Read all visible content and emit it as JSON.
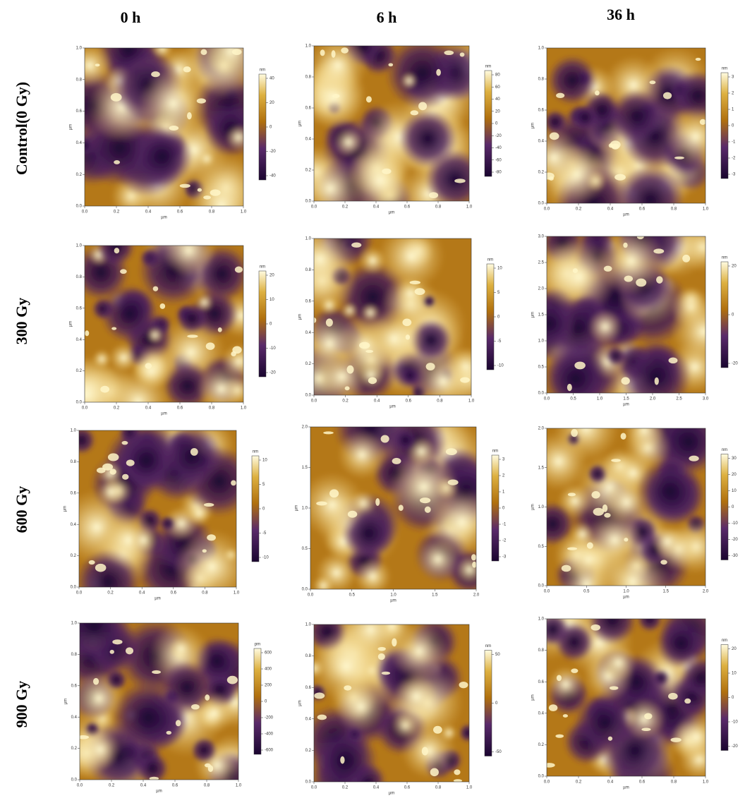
{
  "columns": [
    "0 h",
    "6 h",
    "36 h"
  ],
  "rows": [
    "Control(0 Gy)",
    "300 Gy",
    "600 Gy",
    "900 Gy"
  ],
  "panels": [
    {
      "xticks": [
        "0.0",
        "0.2",
        "0.4",
        "0.6",
        "0.8",
        "1.0"
      ],
      "yticks": [
        "0.0",
        "0.2",
        "0.4",
        "0.6",
        "0.8",
        "1.0"
      ],
      "xlabel": "µm",
      "ylabel": "µm",
      "unit": "nm",
      "cticks": [
        "40",
        "20",
        "0",
        "-20",
        "-40"
      ]
    },
    {
      "xticks": [
        "0.0",
        "0.2",
        "0.4",
        "0.6",
        "0.8",
        "1.0"
      ],
      "yticks": [
        "0.0",
        "0.2",
        "0.4",
        "0.6",
        "0.8",
        "1.0"
      ],
      "xlabel": "µm",
      "ylabel": "µm",
      "unit": "nm",
      "cticks": [
        "80",
        "60",
        "40",
        "20",
        "0",
        "-20",
        "-40",
        "-60",
        "-80"
      ]
    },
    {
      "xticks": [
        "0.0",
        "0.2",
        "0.4",
        "0.6",
        "0.8",
        "1.0"
      ],
      "yticks": [
        "0.0",
        "0.2",
        "0.4",
        "0.6",
        "0.8",
        "1.0"
      ],
      "xlabel": "µm",
      "ylabel": "µm",
      "unit": "nm",
      "cticks": [
        "3",
        "2",
        "1",
        "0",
        "-1",
        "-2",
        "-3"
      ]
    },
    {
      "xticks": [
        "0.0",
        "0.2",
        "0.4",
        "0.6",
        "0.8",
        "1.0"
      ],
      "yticks": [
        "0.0",
        "0.2",
        "0.4",
        "0.6",
        "0.8",
        "1.0"
      ],
      "xlabel": "µm",
      "ylabel": "µm",
      "unit": "nm",
      "cticks": [
        "20",
        "10",
        "0",
        "-10",
        "-20"
      ]
    },
    {
      "xticks": [
        "0.0",
        "0.2",
        "0.4",
        "0.6",
        "0.8",
        "1.0"
      ],
      "yticks": [
        "0.0",
        "0.2",
        "0.4",
        "0.6",
        "0.8",
        "1.0"
      ],
      "xlabel": "µm",
      "ylabel": "µm",
      "unit": "nm",
      "cticks": [
        "10",
        "5",
        "0",
        "-5",
        "-10"
      ]
    },
    {
      "xticks": [
        "0.0",
        "0.5",
        "1.0",
        "1.5",
        "2.0",
        "2.5",
        "3.0"
      ],
      "yticks": [
        "0.0",
        "0.5",
        "1.0",
        "1.5",
        "2.0",
        "2.5",
        "3.0"
      ],
      "xlabel": "µm",
      "ylabel": "µm",
      "unit": "nm",
      "cticks": [
        "20",
        "0",
        "-20"
      ]
    },
    {
      "xticks": [
        "0.0",
        "0.2",
        "0.4",
        "0.6",
        "0.8",
        "1.0"
      ],
      "yticks": [
        "0.0",
        "0.2",
        "0.4",
        "0.6",
        "0.8",
        "1.0"
      ],
      "xlabel": "µm",
      "ylabel": "µm",
      "unit": "nm",
      "cticks": [
        "10",
        "5",
        "0",
        "-5",
        "-10"
      ]
    },
    {
      "xticks": [
        "0.0",
        "0.5",
        "1.0",
        "1.5",
        "2.0"
      ],
      "yticks": [
        "0.0",
        "0.5",
        "1.0",
        "1.5",
        "2.0"
      ],
      "xlabel": "µm",
      "ylabel": "µm",
      "unit": "nm",
      "cticks": [
        "3",
        "2",
        "1",
        "0",
        "-1",
        "-2",
        "-3"
      ]
    },
    {
      "xticks": [
        "0.0",
        "0.5",
        "1.0",
        "1.5",
        "2.0"
      ],
      "yticks": [
        "0.0",
        "0.5",
        "1.0",
        "1.5",
        "2.0"
      ],
      "xlabel": "µm",
      "ylabel": "µm",
      "unit": "nm",
      "cticks": [
        "30",
        "20",
        "10",
        "0",
        "-10",
        "-20",
        "-30"
      ]
    },
    {
      "xticks": [
        "0.0",
        "0.2",
        "0.4",
        "0.6",
        "0.8",
        "1.0"
      ],
      "yticks": [
        "0.0",
        "0.2",
        "0.4",
        "0.6",
        "0.8",
        "1.0"
      ],
      "xlabel": "µm",
      "ylabel": "µm",
      "unit": "pm",
      "cticks": [
        "600",
        "400",
        "200",
        "0",
        "-200",
        "-400",
        "-600"
      ]
    },
    {
      "xticks": [
        "0.0",
        "0.2",
        "0.4",
        "0.6",
        "0.8",
        "1.0"
      ],
      "yticks": [
        "0.0",
        "0.2",
        "0.4",
        "0.6",
        "0.8",
        "1.0"
      ],
      "xlabel": "µm",
      "ylabel": "µm",
      "unit": "nm",
      "cticks": [
        "50",
        "0",
        "-50"
      ]
    },
    {
      "xticks": [
        "0.0",
        "0.2",
        "0.4",
        "0.6",
        "0.8",
        "1.0"
      ],
      "yticks": [
        "0.0",
        "0.2",
        "0.4",
        "0.6",
        "0.8",
        "1.0"
      ],
      "xlabel": "µm",
      "ylabel": "µm",
      "unit": "nm",
      "cticks": [
        "20",
        "10",
        "0",
        "-10",
        "-20"
      ]
    }
  ]
}
